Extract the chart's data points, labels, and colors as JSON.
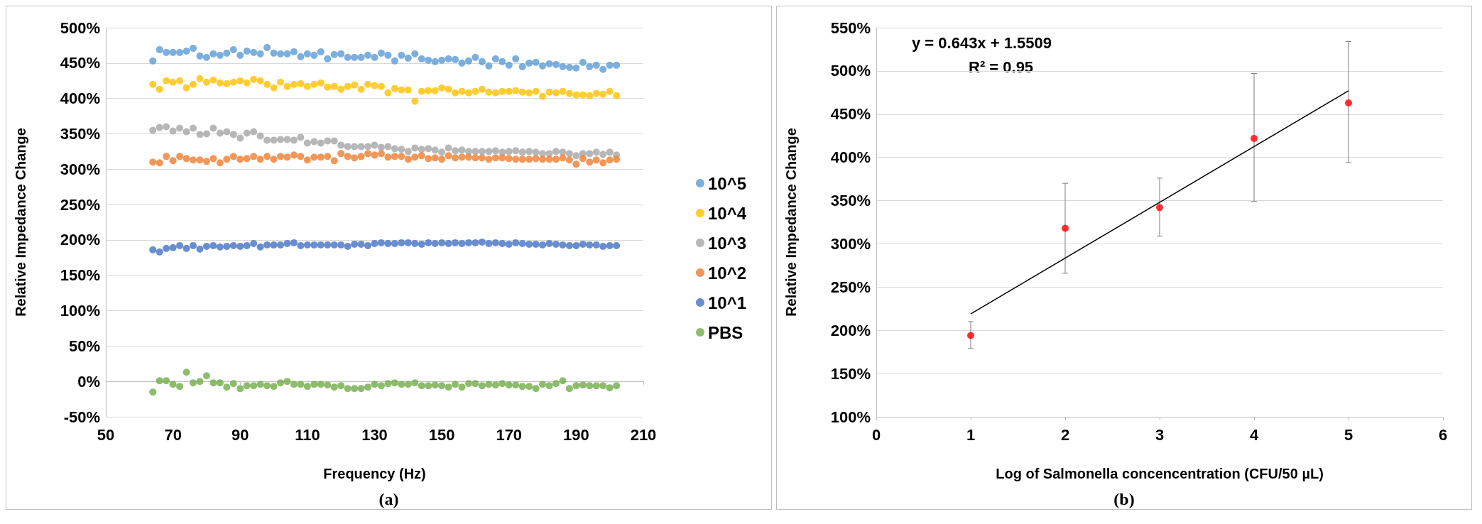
{
  "chart_data": [
    {
      "type": "scatter",
      "xlabel": "Frequency (Hz)",
      "ylabel": "Relative Impedance Change",
      "annotations": [
        "(a)"
      ],
      "x": [
        64,
        66,
        68,
        70,
        72,
        74,
        76,
        78,
        80,
        82,
        84,
        86,
        88,
        90,
        92,
        94,
        96,
        98,
        100,
        102,
        104,
        106,
        108,
        110,
        112,
        114,
        116,
        118,
        120,
        122,
        124,
        126,
        128,
        130,
        132,
        134,
        136,
        138,
        140,
        142,
        144,
        146,
        148,
        150,
        152,
        154,
        156,
        158,
        160,
        162,
        164,
        166,
        168,
        170,
        172,
        174,
        176,
        178,
        180,
        182,
        184,
        186,
        188,
        190,
        192,
        194,
        196,
        198,
        200,
        202
      ],
      "series": [
        {
          "name": "10^5",
          "color": "#5b9bd5",
          "values": [
            453,
            469,
            465,
            465,
            465,
            467,
            471,
            460,
            458,
            463,
            461,
            464,
            469,
            461,
            467,
            465,
            463,
            472,
            464,
            463,
            463,
            466,
            459,
            463,
            461,
            466,
            456,
            462,
            463,
            458,
            458,
            458,
            461,
            458,
            464,
            461,
            453,
            461,
            457,
            463,
            456,
            454,
            452,
            454,
            456,
            455,
            450,
            453,
            458,
            452,
            446,
            456,
            452,
            447,
            456,
            445,
            450,
            451,
            446,
            449,
            448,
            445,
            444,
            443,
            451,
            445,
            447,
            441,
            447,
            447
          ]
        },
        {
          "name": "10^4",
          "color": "#ffc000",
          "values": [
            420,
            413,
            425,
            423,
            425,
            415,
            420,
            428,
            423,
            426,
            422,
            421,
            423,
            425,
            422,
            427,
            425,
            420,
            415,
            423,
            417,
            420,
            421,
            417,
            420,
            422,
            416,
            417,
            413,
            417,
            419,
            413,
            420,
            418,
            417,
            408,
            414,
            412,
            412,
            396,
            410,
            411,
            411,
            415,
            413,
            408,
            410,
            408,
            410,
            413,
            409,
            408,
            410,
            410,
            411,
            409,
            408,
            410,
            403,
            409,
            408,
            410,
            407,
            405,
            405,
            404,
            407,
            406,
            410,
            404
          ]
        },
        {
          "name": "10^3",
          "color": "#a5a5a5",
          "values": [
            355,
            359,
            360,
            354,
            358,
            353,
            358,
            349,
            350,
            358,
            351,
            353,
            349,
            344,
            351,
            353,
            347,
            341,
            341,
            342,
            342,
            341,
            345,
            337,
            339,
            337,
            340,
            340,
            334,
            332,
            332,
            332,
            332,
            334,
            331,
            332,
            329,
            328,
            325,
            330,
            328,
            329,
            327,
            324,
            330,
            326,
            327,
            325,
            325,
            325,
            325,
            326,
            324,
            325,
            326,
            324,
            325,
            324,
            322,
            322,
            325,
            324,
            322,
            319,
            322,
            322,
            324,
            321,
            324,
            320
          ]
        },
        {
          "name": "10^2",
          "color": "#ed7d31",
          "values": [
            310,
            309,
            318,
            312,
            318,
            315,
            313,
            313,
            311,
            315,
            309,
            314,
            318,
            314,
            315,
            318,
            314,
            318,
            314,
            318,
            317,
            320,
            318,
            313,
            317,
            317,
            318,
            312,
            322,
            318,
            316,
            318,
            322,
            320,
            322,
            317,
            318,
            318,
            314,
            317,
            319,
            315,
            316,
            314,
            319,
            316,
            317,
            317,
            316,
            316,
            314,
            316,
            316,
            315,
            314,
            314,
            314,
            315,
            314,
            314,
            314,
            316,
            313,
            307,
            315,
            310,
            313,
            309,
            313,
            314
          ]
        },
        {
          "name": "10^1",
          "color": "#4472c4",
          "values": [
            186,
            183,
            188,
            189,
            192,
            188,
            192,
            187,
            191,
            192,
            190,
            191,
            192,
            191,
            192,
            195,
            190,
            193,
            193,
            193,
            195,
            196,
            192,
            193,
            193,
            193,
            193,
            193,
            193,
            191,
            194,
            194,
            192,
            195,
            196,
            195,
            195,
            196,
            196,
            195,
            194,
            196,
            195,
            196,
            195,
            196,
            195,
            196,
            196,
            197,
            195,
            196,
            195,
            194,
            196,
            195,
            194,
            194,
            193,
            195,
            194,
            193,
            192,
            192,
            194,
            193,
            193,
            191,
            192,
            192
          ]
        },
        {
          "name": "PBS",
          "color": "#70ad47",
          "values": [
            -15,
            1,
            1,
            -4,
            -7,
            13,
            -2,
            0,
            8,
            -2,
            -2,
            -8,
            -3,
            -10,
            -6,
            -6,
            -4,
            -6,
            -7,
            -2,
            0,
            -4,
            -4,
            -7,
            -4,
            -4,
            -5,
            -8,
            -6,
            -10,
            -10,
            -10,
            -8,
            -4,
            -6,
            -3,
            -2,
            -4,
            -4,
            -2,
            -6,
            -6,
            -5,
            -6,
            -8,
            -4,
            -8,
            -3,
            -3,
            -6,
            -4,
            -5,
            -3,
            -5,
            -5,
            -7,
            -7,
            -10,
            -4,
            -6,
            -3,
            1,
            -10,
            -6,
            -5,
            -6,
            -6,
            -6,
            -9,
            -6
          ]
        }
      ],
      "xlim": [
        50,
        210
      ],
      "xticks": [
        50,
        70,
        90,
        110,
        130,
        150,
        170,
        190,
        210
      ],
      "ylim": [
        -50,
        500
      ],
      "yticks": [
        {
          "value": -50,
          "label": "-50%"
        },
        {
          "value": 0,
          "label": "0%"
        },
        {
          "value": 50,
          "label": "50%"
        },
        {
          "value": 100,
          "label": "100%"
        },
        {
          "value": 150,
          "label": "150%"
        },
        {
          "value": 200,
          "label": "200%"
        },
        {
          "value": 250,
          "label": "250%"
        },
        {
          "value": 300,
          "label": "300%"
        },
        {
          "value": 350,
          "label": "350%"
        },
        {
          "value": 400,
          "label": "400%"
        },
        {
          "value": 450,
          "label": "450%"
        },
        {
          "value": 500,
          "label": "500%"
        }
      ],
      "grid": "y",
      "legend": "right",
      "marker": "circle"
    },
    {
      "type": "scatter",
      "xlabel": "Log of Salmonella concencentration (CFU/50 µL)",
      "ylabel": "Relative Impedance Change",
      "annotations": [
        "y = 0.643x + 1.5509",
        "R² = 0.95",
        "(b)"
      ],
      "series": [
        {
          "color": "#ff0000",
          "x": [
            1,
            2,
            3,
            4,
            5
          ],
          "values": [
            194,
            318,
            342,
            422,
            463
          ],
          "errors": [
            [
              179,
              210
            ],
            [
              266,
              370
            ],
            [
              309,
              376
            ],
            [
              349,
              497
            ],
            [
              394,
              534
            ]
          ]
        },
        {
          "type": "line",
          "color": "#000000",
          "marker": "none",
          "x": [
            1,
            5
          ],
          "values": [
            219,
            477
          ]
        }
      ],
      "xlim": [
        0,
        6
      ],
      "xticks": [
        0,
        1,
        2,
        3,
        4,
        5,
        6
      ],
      "ylim": [
        100,
        550
      ],
      "yticks": [
        {
          "value": 100,
          "label": "100%"
        },
        {
          "value": 150,
          "label": "150%"
        },
        {
          "value": 200,
          "label": "200%"
        },
        {
          "value": 250,
          "label": "250%"
        },
        {
          "value": 300,
          "label": "300%"
        },
        {
          "value": 350,
          "label": "350%"
        },
        {
          "value": 400,
          "label": "400%"
        },
        {
          "value": 450,
          "label": "450%"
        },
        {
          "value": 500,
          "label": "500%"
        },
        {
          "value": 550,
          "label": "550%"
        }
      ],
      "grid": "y",
      "marker": "circle",
      "line_style": "solid"
    }
  ]
}
